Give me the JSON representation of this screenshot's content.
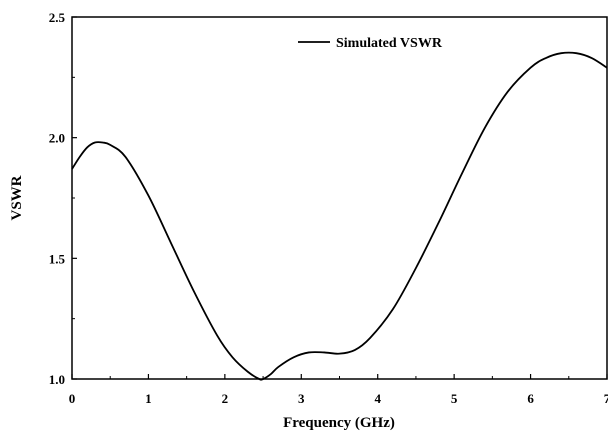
{
  "chart_data": {
    "type": "line",
    "title": "",
    "xlabel": "Frequency (GHz)",
    "ylabel": "VSWR",
    "xlim": [
      0,
      7
    ],
    "ylim": [
      1.0,
      2.5
    ],
    "x_ticks": [
      0,
      1,
      2,
      3,
      4,
      5,
      6,
      7
    ],
    "y_ticks": [
      1.0,
      1.5,
      2.0,
      2.5
    ],
    "x_tick_labels": [
      "0",
      "1",
      "2",
      "3",
      "4",
      "5",
      "6",
      "7"
    ],
    "y_tick_labels": [
      "1.0",
      "1.5",
      "2.0",
      "2.5"
    ],
    "grid": false,
    "legend_position": "top-center",
    "series": [
      {
        "name": "Simulated VSWR",
        "color": "#000000",
        "x": [
          0,
          0.1,
          0.2,
          0.3,
          0.4,
          0.5,
          0.7,
          1.0,
          1.3,
          1.6,
          1.9,
          2.1,
          2.3,
          2.45,
          2.5,
          2.6,
          2.7,
          2.9,
          3.1,
          3.3,
          3.5,
          3.7,
          3.9,
          4.2,
          4.5,
          4.8,
          5.1,
          5.4,
          5.7,
          6.0,
          6.2,
          6.4,
          6.6,
          6.8,
          7.0
        ],
        "y": [
          1.87,
          1.92,
          1.96,
          1.98,
          1.98,
          1.97,
          1.92,
          1.76,
          1.56,
          1.36,
          1.18,
          1.09,
          1.03,
          1.0,
          1.0,
          1.02,
          1.05,
          1.09,
          1.11,
          1.11,
          1.105,
          1.12,
          1.17,
          1.29,
          1.46,
          1.65,
          1.85,
          2.04,
          2.19,
          2.29,
          2.33,
          2.35,
          2.35,
          2.33,
          2.29
        ]
      }
    ]
  }
}
